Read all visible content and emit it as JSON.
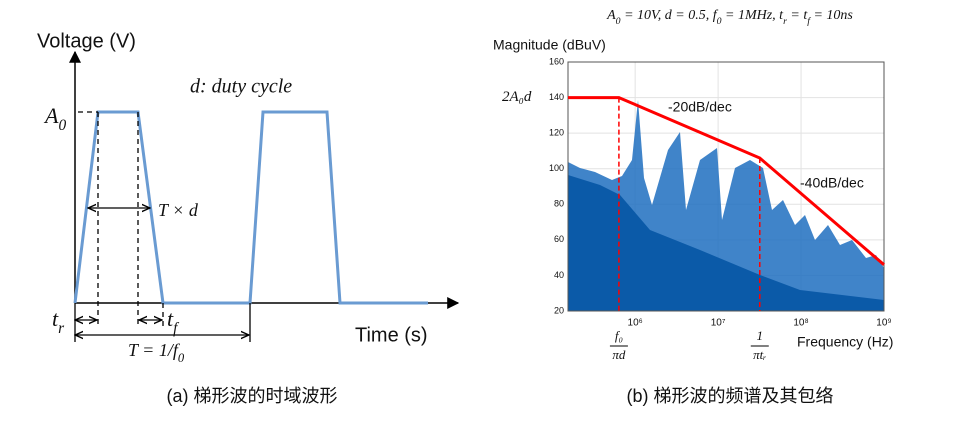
{
  "left": {
    "y_axis_label": "Voltage (V)",
    "x_axis_label": "Time (s)",
    "amplitude": {
      "base": "A",
      "sub": "0"
    },
    "duty_note": "d: duty cycle",
    "pulse_width": "T × d",
    "rise": {
      "base": "t",
      "sub": "r"
    },
    "fall": {
      "base": "t",
      "sub": "f"
    },
    "period": {
      "base": "T = 1/f",
      "sub": "0"
    },
    "caption": "(a) 梯形波的时域波形"
  },
  "right": {
    "params": [
      {
        "base": "A",
        "sub": "0"
      },
      {
        "base": " = 10V, d = 0.5, f",
        "sub": "0"
      },
      {
        "base": " = 1MHz, t",
        "sub": "r"
      },
      {
        "base": " = t",
        "sub": "f"
      },
      {
        "base": " = 10ns"
      }
    ],
    "caption": "(b) 梯形波的频谱及其包络",
    "chart_data": {
      "type": "line",
      "y_axis_label": "Magnitude (dBuV)",
      "x_axis_label": "Frequency (Hz)",
      "log_x": true,
      "grid": true,
      "xlim": [
        155000,
        1000000000
      ],
      "ylim": [
        20,
        160
      ],
      "yticks": [
        20,
        40,
        60,
        80,
        100,
        120,
        140,
        160
      ],
      "xticks": [
        {
          "value": 1000000,
          "label": "10⁶"
        },
        {
          "value": 10000000,
          "label": "10⁷"
        },
        {
          "value": 100000000,
          "label": "10⁸"
        },
        {
          "value": 1000000000,
          "label": "10⁹"
        }
      ],
      "series": [
        {
          "color": "#ff0000",
          "x": [
            155000,
            637000,
            31800000,
            1000000000
          ],
          "values": [
            140,
            140,
            106,
            46
          ]
        }
      ],
      "annotations": [
        "-20dB/dec",
        "-40dB/dec"
      ],
      "level_label": "2A₀d",
      "level_value": 140,
      "corner_markers": [
        {
          "x": 637000,
          "num": "f₀",
          "den": "πd"
        },
        {
          "x": 31800000,
          "num": "1",
          "den": "πtᵣ"
        }
      ]
    }
  }
}
